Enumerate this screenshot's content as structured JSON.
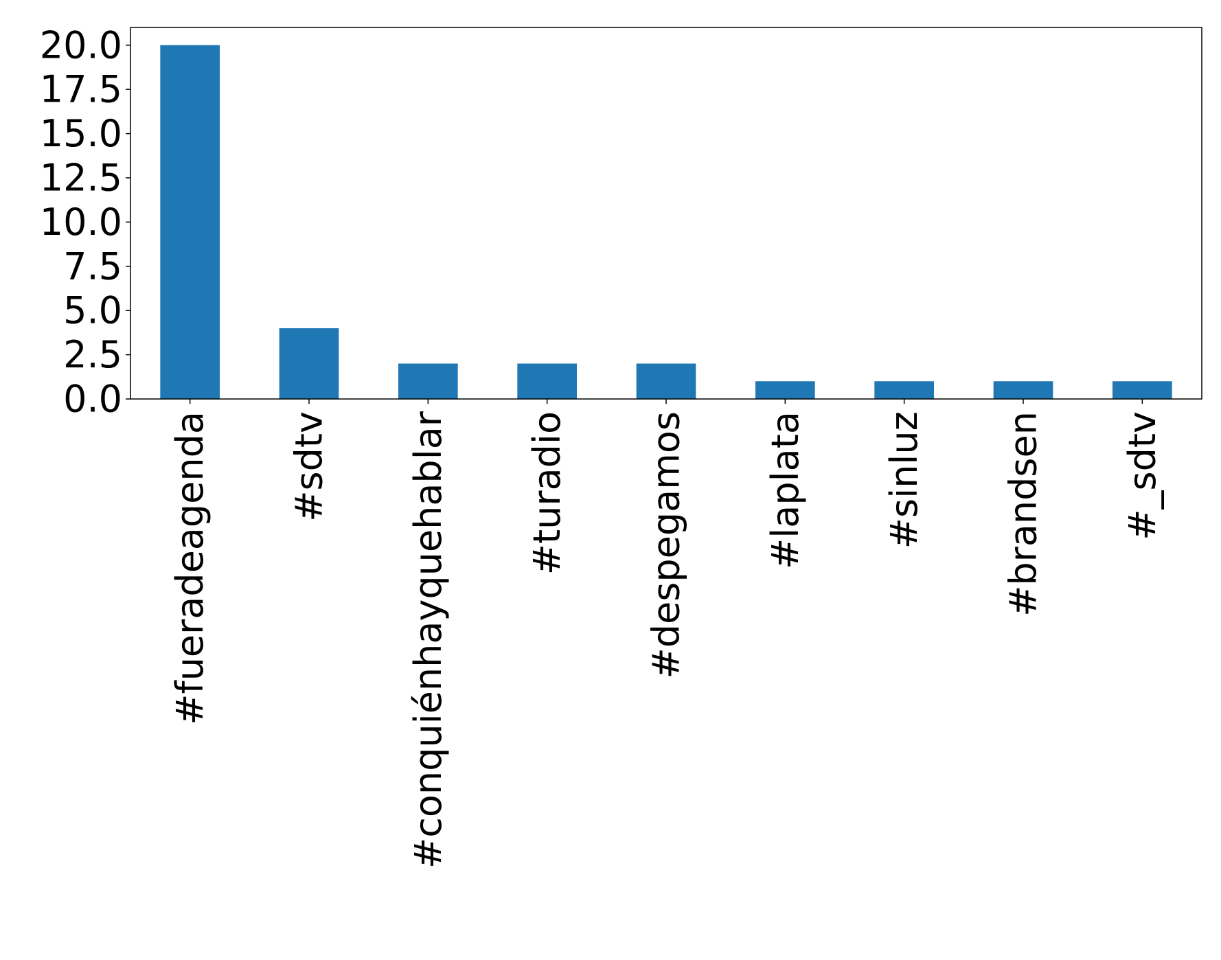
{
  "chart_data": {
    "type": "bar",
    "title": "",
    "xlabel": "",
    "ylabel": "",
    "categories": [
      "#fueradeagenda",
      "#sdtv",
      "#conquiénhayquehablar",
      "#turadio",
      "#despegamos",
      "#laplata",
      "#sinluz",
      "#brandsen",
      "#_sdtv"
    ],
    "values": [
      20,
      4,
      2,
      2,
      2,
      1,
      1,
      1,
      1
    ],
    "ylim": [
      0,
      21
    ],
    "yticks": [
      "0.0",
      "2.5",
      "5.0",
      "7.5",
      "10.0",
      "12.5",
      "15.0",
      "17.5",
      "20.0"
    ],
    "ytick_values": [
      0,
      2.5,
      5,
      7.5,
      10,
      12.5,
      15,
      17.5,
      20
    ],
    "bar_color": "#1f77b4",
    "grid": false,
    "legend": "none",
    "xtick_rotation": "vertical"
  }
}
